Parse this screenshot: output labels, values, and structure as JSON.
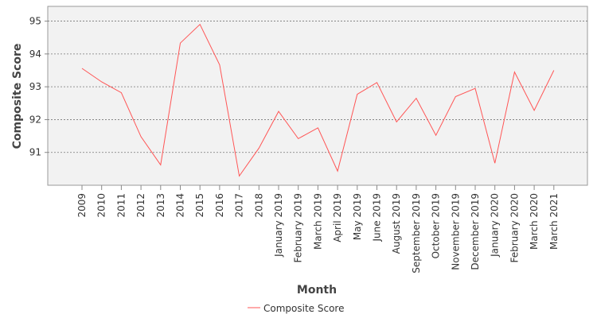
{
  "chart_data": {
    "type": "line",
    "xlabel": "Month",
    "ylabel": "Composite Score",
    "ylim": [
      90.0,
      95.45
    ],
    "yticks": [
      91,
      92,
      93,
      94,
      95
    ],
    "grid": true,
    "legend_position": "bottom",
    "categories": [
      "2009",
      "2010",
      "2011",
      "2012",
      "2013",
      "2014",
      "2015",
      "2016",
      "2017",
      "2018",
      "January 2019",
      "February 2019",
      "March 2019",
      "April 2019",
      "May 2019",
      "June 2019",
      "August 2019",
      "September 2019",
      "October 2019",
      "November 2019",
      "December 2019",
      "January 2020",
      "February 2020",
      "March 2020",
      "March 2021"
    ],
    "series": [
      {
        "name": "Composite Score",
        "color": "#ff5555",
        "values": [
          93.56,
          93.15,
          92.82,
          91.48,
          90.62,
          94.33,
          94.9,
          93.67,
          90.28,
          91.13,
          92.25,
          91.42,
          91.75,
          90.43,
          92.77,
          93.13,
          91.93,
          92.65,
          91.52,
          92.7,
          92.95,
          90.67,
          93.45,
          92.28,
          93.5
        ]
      }
    ]
  }
}
